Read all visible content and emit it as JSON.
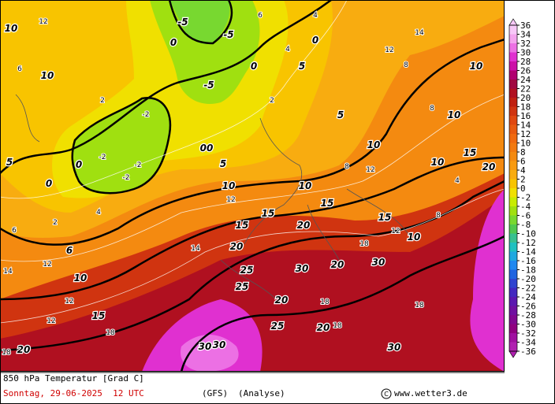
{
  "title": "850 hPa Temperatur [Grad C]",
  "date": "Sonntag, 29-06-2025  12 UTC",
  "model": "(GFS)",
  "run": "(Analyse)",
  "copyright": "www.wetter3.de",
  "colorbar": {
    "ticks": [
      36,
      34,
      32,
      30,
      28,
      26,
      24,
      22,
      20,
      18,
      16,
      14,
      12,
      10,
      8,
      6,
      4,
      2,
      0,
      -2,
      -4,
      -6,
      -8,
      -10,
      -12,
      -14,
      -16,
      -18,
      -20,
      -22,
      -24,
      -26,
      -28,
      -30,
      -32,
      -34,
      -36
    ],
    "colors": [
      "#f8c8f8",
      "#f4a4ee",
      "#ec70e4",
      "#e030d0",
      "#cc10a8",
      "#b00070",
      "#a00840",
      "#b01020",
      "#c02010",
      "#d03410",
      "#e04810",
      "#e85a10",
      "#f06a10",
      "#f27a10",
      "#f48a10",
      "#f89a10",
      "#f8ac10",
      "#f8c400",
      "#f0e000",
      "#c8ec00",
      "#a0e010",
      "#78d830",
      "#50c850",
      "#38c090",
      "#20c0c0",
      "#20a8e0",
      "#2088f0",
      "#2064e0",
      "#3044d0",
      "#4428c0",
      "#5c18b0",
      "#7010a0",
      "#800890",
      "#900080",
      "#a010a0",
      "#b020b0"
    ]
  },
  "contour_labels": [
    "10",
    "10",
    "5",
    "0",
    "0",
    "6",
    "10",
    "15",
    "20",
    "-5",
    "0",
    "-5",
    "-5",
    "0",
    "0",
    "5",
    "5",
    "10",
    "10",
    "10",
    "10",
    "15",
    "20",
    "10",
    "10",
    "15",
    "15",
    "15",
    "20",
    "15",
    "10",
    "20",
    "25",
    "25",
    "20",
    "30",
    "20",
    "30",
    "25",
    "20",
    "30",
    "30",
    "30",
    "00",
    "5"
  ],
  "isoline_labels": [
    "2",
    "-2",
    "-2",
    "-2",
    "-2",
    "4",
    "2",
    "6",
    "14",
    "12",
    "12",
    "12",
    "18",
    "18",
    "14",
    "12",
    "18",
    "18",
    "18",
    "8",
    "8",
    "14",
    "12",
    "8",
    "12",
    "4",
    "8",
    "12",
    "18",
    "6",
    "4",
    "12",
    "6",
    "4",
    "2"
  ]
}
